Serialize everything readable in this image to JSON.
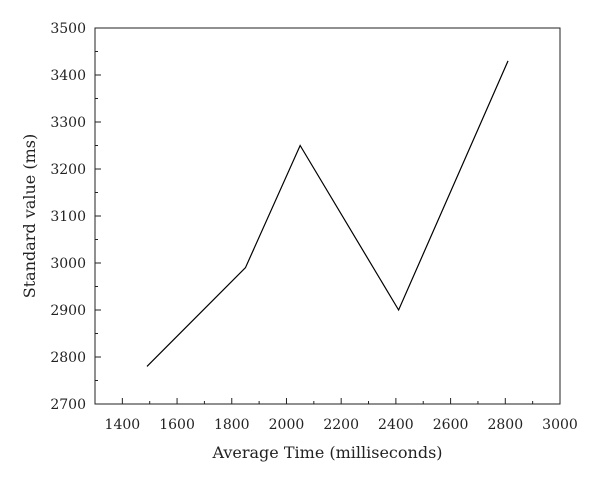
{
  "chart_data": {
    "type": "line",
    "title": "",
    "xlabel": "Average Time (milliseconds)",
    "ylabel": "Standard value (ms)",
    "xlim": [
      1300,
      3000
    ],
    "ylim": [
      2700,
      3500
    ],
    "x_ticks": [
      1400,
      1600,
      1800,
      2000,
      2200,
      2400,
      2600,
      2800,
      3000
    ],
    "y_ticks": [
      2700,
      2800,
      2900,
      3000,
      3100,
      3200,
      3300,
      3400,
      3500
    ],
    "grid": false,
    "legend": "none",
    "series": [
      {
        "x": [
          1490,
          1850,
          2050,
          2410,
          2810
        ],
        "y": [
          2780,
          2990,
          3250,
          2900,
          3430
        ],
        "color": "#000000"
      }
    ]
  }
}
